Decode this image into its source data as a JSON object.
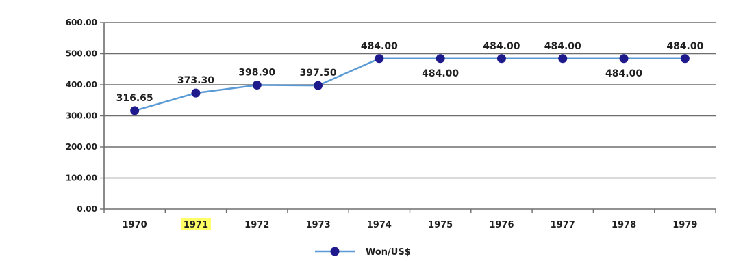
{
  "chart_data": {
    "type": "line",
    "categories": [
      "1970",
      "1971",
      "1972",
      "1973",
      "1974",
      "1975",
      "1976",
      "1977",
      "1978",
      "1979"
    ],
    "category_highlight": {
      "index": 1,
      "color": "#ffff66"
    },
    "series": [
      {
        "name": "Won/US$",
        "values": [
          316.65,
          373.3,
          398.9,
          397.5,
          484.0,
          484.0,
          484.0,
          484.0,
          484.0,
          484.0
        ],
        "labels": [
          "316.65",
          "373.30",
          "398.90",
          "397.50",
          "484.00",
          "484.00",
          "484.00",
          "484.00",
          "484.00",
          "484.00"
        ],
        "label_position": [
          "above",
          "above",
          "above",
          "above",
          "above",
          "below",
          "above",
          "above",
          "below",
          "above"
        ],
        "line_color": "#5b9bd5",
        "marker_color": "#1f1a8c"
      }
    ],
    "y_ticks": [
      "0.00",
      "100.00",
      "200.00",
      "300.00",
      "400.00",
      "500.00",
      "600.00"
    ],
    "ylim": [
      0,
      600
    ],
    "grid": true,
    "legend": "bottom-center"
  }
}
